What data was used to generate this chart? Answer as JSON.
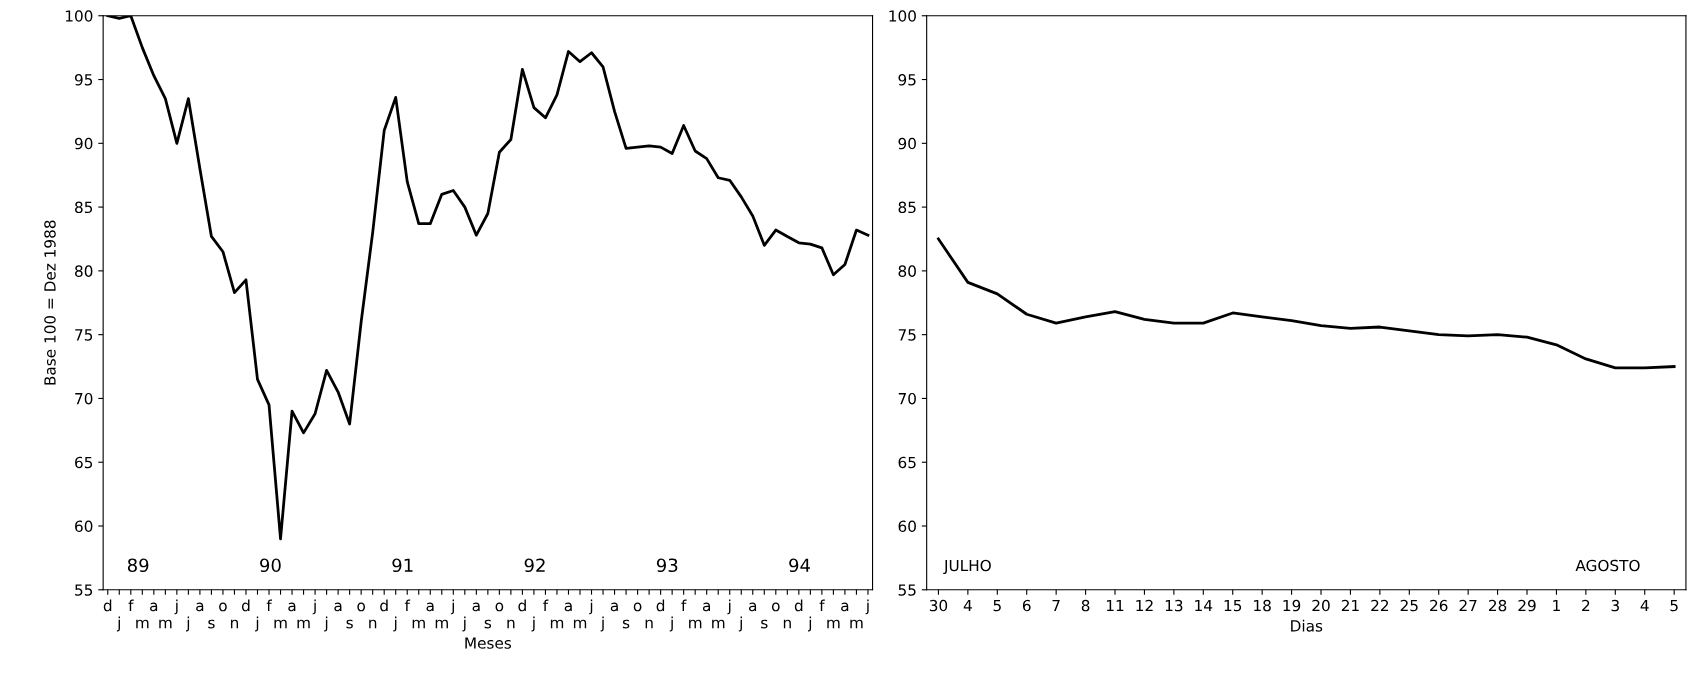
{
  "chart_data": [
    {
      "type": "line",
      "ylabel": "Base 100 = Dez 1988",
      "xlabel": "Meses",
      "categories": [
        "d",
        "j",
        "f",
        "m",
        "a",
        "m",
        "j",
        "j",
        "a",
        "s",
        "o",
        "n",
        "d",
        "j",
        "f",
        "m",
        "a",
        "m",
        "j",
        "j",
        "a",
        "s",
        "o",
        "n",
        "d",
        "j",
        "f",
        "m",
        "a",
        "m",
        "j",
        "j",
        "a",
        "s",
        "o",
        "n",
        "d",
        "j",
        "f",
        "m",
        "a",
        "m",
        "j",
        "j",
        "a",
        "s",
        "o",
        "n",
        "d",
        "j",
        "f",
        "m",
        "a",
        "m",
        "j",
        "j",
        "a",
        "s",
        "o",
        "n",
        "d",
        "j",
        "f",
        "m",
        "a",
        "m",
        "j"
      ],
      "series": [
        {
          "color": "#000000",
          "values": [
            100,
            99.8,
            100,
            97.5,
            95.3,
            93.5,
            90,
            93.5,
            88,
            82.7,
            81.5,
            78.3,
            79.3,
            71.5,
            69.5,
            59,
            69,
            67.3,
            68.8,
            72.2,
            70.5,
            68,
            76,
            83,
            91,
            93.6,
            87,
            83.7,
            83.7,
            86,
            86.3,
            85,
            82.8,
            84.5,
            89.3,
            90.3,
            95.8,
            92.8,
            92,
            93.8,
            97.2,
            96.4,
            97.1,
            96,
            92.5,
            89.6,
            89.7,
            89.8,
            89.7,
            89.2,
            91.4,
            89.4,
            88.8,
            87.3,
            87.1,
            85.8,
            84.3,
            82,
            83.2,
            82.7,
            82.2,
            82.1,
            81.8,
            79.7,
            80.5,
            83.2,
            82.8
          ]
        }
      ],
      "ylim": [
        55,
        100
      ],
      "yticks": [
        55,
        60,
        65,
        70,
        75,
        80,
        85,
        90,
        95,
        100
      ],
      "annotations": [
        "89",
        "90",
        "91",
        "92",
        "93",
        "94"
      ]
    },
    {
      "type": "line",
      "xlabel": "Dias",
      "categories": [
        "30",
        "4",
        "5",
        "6",
        "7",
        "8",
        "11",
        "12",
        "13",
        "14",
        "15",
        "18",
        "19",
        "20",
        "21",
        "22",
        "25",
        "26",
        "27",
        "28",
        "29",
        "1",
        "2",
        "3",
        "4",
        "5"
      ],
      "series": [
        {
          "color": "#000000",
          "values": [
            82.5,
            79.1,
            78.2,
            76.6,
            75.9,
            76.4,
            76.8,
            76.2,
            75.9,
            75.9,
            76.7,
            76.4,
            76.1,
            75.7,
            75.5,
            75.6,
            75.3,
            75.0,
            74.9,
            75.0,
            74.8,
            74.2,
            73.1,
            72.4,
            72.4,
            72.5
          ]
        }
      ],
      "ylim": [
        55,
        100
      ],
      "yticks": [
        55,
        60,
        65,
        70,
        75,
        80,
        85,
        90,
        95,
        100
      ],
      "annotations": [
        "JULHO",
        "AGOSTO"
      ]
    }
  ]
}
